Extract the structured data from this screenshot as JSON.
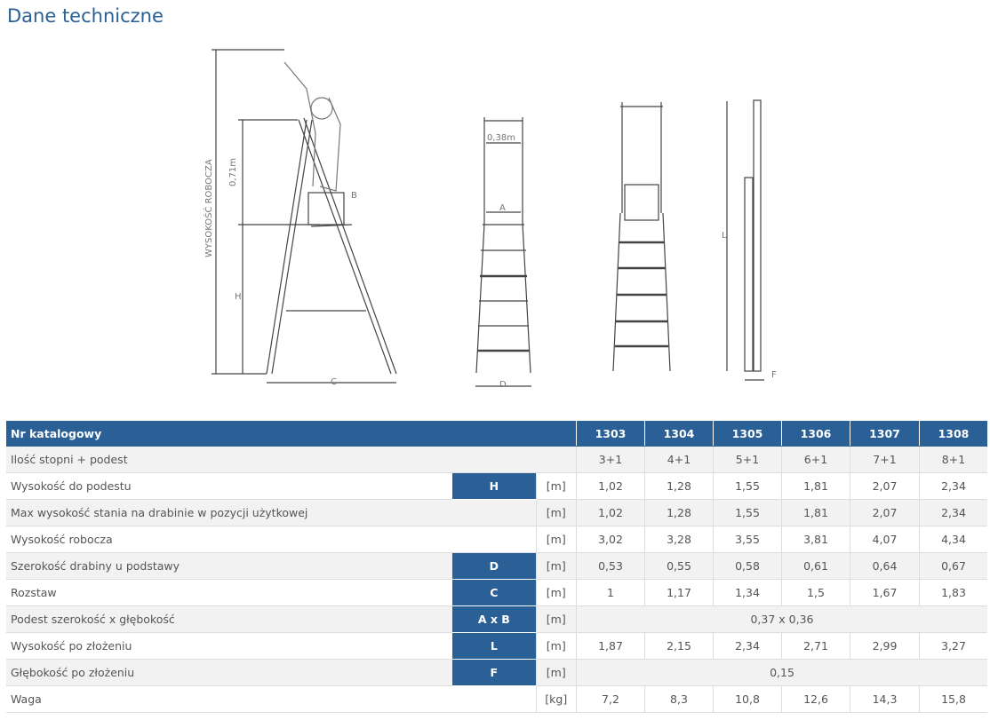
{
  "title": "Dane techniczne",
  "diagram": {
    "working_height": "WYSOKOŚĆ ROBOCZA",
    "h071": "0,71m",
    "H": "H",
    "B": "B",
    "C": "C",
    "w038": "0,38m",
    "A": "A",
    "D": "D",
    "L": "L",
    "F": "F"
  },
  "table": {
    "header": {
      "label": "Nr katalogowy",
      "models": [
        "1303",
        "1304",
        "1305",
        "1306",
        "1307",
        "1308"
      ]
    },
    "rows": [
      {
        "label": "Ilość stopni + podest",
        "key": "",
        "unit": "",
        "values": [
          "3+1",
          "4+1",
          "5+1",
          "6+1",
          "7+1",
          "8+1"
        ]
      },
      {
        "label": "Wysokość do podestu",
        "key": "H",
        "unit": "[m]",
        "values": [
          "1,02",
          "1,28",
          "1,55",
          "1,81",
          "2,07",
          "2,34"
        ]
      },
      {
        "label": "Max wysokość stania na drabinie w pozycji użytkowej",
        "key": "",
        "unit": "[m]",
        "values": [
          "1,02",
          "1,28",
          "1,55",
          "1,81",
          "2,07",
          "2,34"
        ]
      },
      {
        "label": "Wysokość robocza",
        "key": "",
        "unit": "[m]",
        "values": [
          "3,02",
          "3,28",
          "3,55",
          "3,81",
          "4,07",
          "4,34"
        ]
      },
      {
        "label": "Szerokość drabiny u podstawy",
        "key": "D",
        "unit": "[m]",
        "values": [
          "0,53",
          "0,55",
          "0,58",
          "0,61",
          "0,64",
          "0,67"
        ]
      },
      {
        "label": "Rozstaw",
        "key": "C",
        "unit": "[m]",
        "values": [
          "1",
          "1,17",
          "1,34",
          "1,5",
          "1,67",
          "1,83"
        ]
      },
      {
        "label": "Podest szerokość x głębokość",
        "key": "A x B",
        "unit": "[m]",
        "merged": "0,37 x 0,36"
      },
      {
        "label": "Wysokość po złożeniu",
        "key": "L",
        "unit": "[m]",
        "values": [
          "1,87",
          "2,15",
          "2,34",
          "2,71",
          "2,99",
          "3,27"
        ]
      },
      {
        "label": "Głębokość po złożeniu",
        "key": "F",
        "unit": "[m]",
        "merged": "0,15"
      },
      {
        "label": "Waga",
        "key": "",
        "unit": "[kg]",
        "values": [
          "7,2",
          "8,3",
          "10,8",
          "12,6",
          "14,3",
          "15,8"
        ]
      }
    ]
  }
}
